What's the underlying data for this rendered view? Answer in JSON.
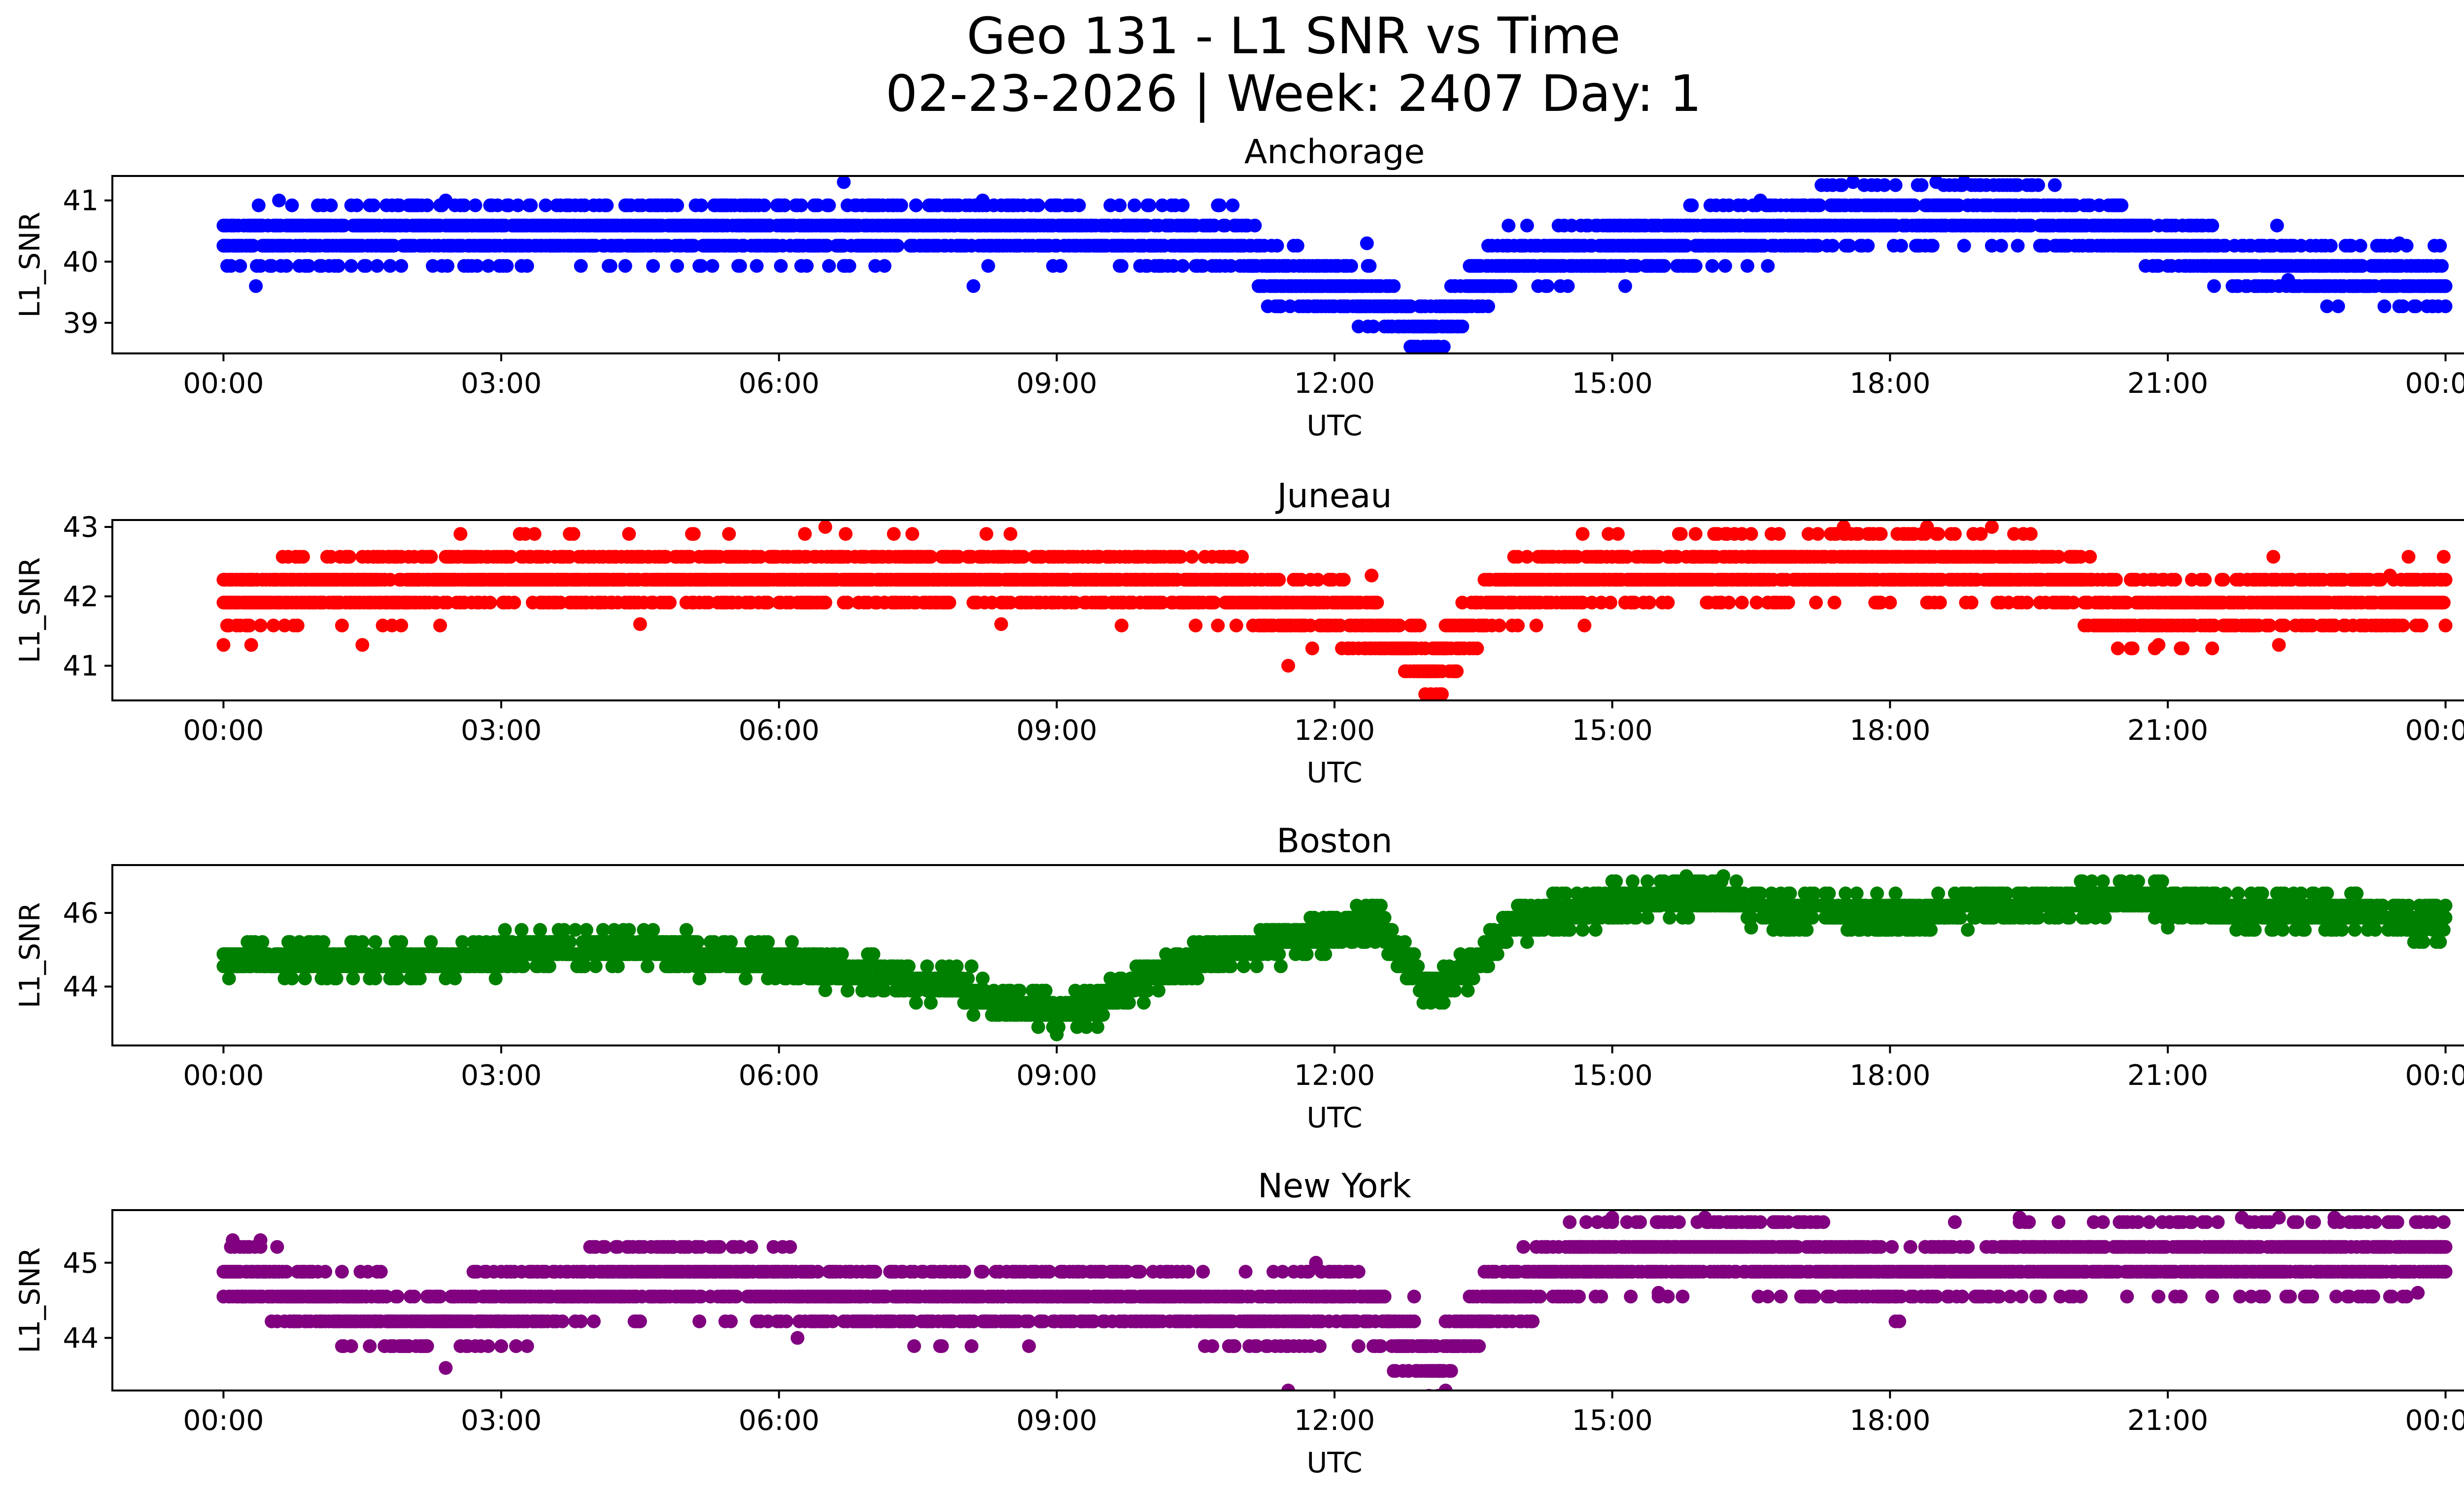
{
  "chart_data": {
    "type": "scatter",
    "title_lines": [
      "Geo 131 - L1 SNR vs Time",
      "02-23-2026 | Week: 2407 Day: 1"
    ],
    "x_tick_labels": [
      "00:00",
      "03:00",
      "06:00",
      "09:00",
      "12:00",
      "15:00",
      "18:00",
      "21:00",
      "00:00"
    ],
    "x_range_hours": [
      -1.2,
      25.2
    ],
    "panels": [
      {
        "title": "Anchorage",
        "xlabel": "UTC",
        "ylabel": "L1_SNR",
        "color": "#0000ff",
        "ylim": [
          38.5,
          41.4
        ],
        "yticks": [
          39,
          40,
          41
        ],
        "ytick_labels": [
          "39",
          "40",
          "41"
        ],
        "quantum": 0.33,
        "profile": [
          [
            0.0,
            40.3
          ],
          [
            1.0,
            40.4
          ],
          [
            3.0,
            40.5
          ],
          [
            6.0,
            40.5
          ],
          [
            9.0,
            40.5
          ],
          [
            11.0,
            40.3
          ],
          [
            11.3,
            39.7
          ],
          [
            12.0,
            39.6
          ],
          [
            12.6,
            39.3
          ],
          [
            13.1,
            38.8
          ],
          [
            13.5,
            39.6
          ],
          [
            14.0,
            40.1
          ],
          [
            15.0,
            40.2
          ],
          [
            16.5,
            40.5
          ],
          [
            18.0,
            40.8
          ],
          [
            19.5,
            40.8
          ],
          [
            21.0,
            40.3
          ],
          [
            22.0,
            40.0
          ],
          [
            23.0,
            39.8
          ],
          [
            24.0,
            39.7
          ]
        ],
        "outliers": [
          [
            0.35,
            39.6
          ],
          [
            0.6,
            41.0
          ],
          [
            2.4,
            41.0
          ],
          [
            6.7,
            41.3
          ],
          [
            8.2,
            41.0
          ],
          [
            8.1,
            39.6
          ],
          [
            12.35,
            40.3
          ],
          [
            17.6,
            41.3
          ],
          [
            18.5,
            41.3
          ],
          [
            18.8,
            41.3
          ],
          [
            16.6,
            41.0
          ],
          [
            22.3,
            39.7
          ],
          [
            23.5,
            40.3
          ],
          [
            21.7,
            39.6
          ]
        ]
      },
      {
        "title": "Juneau",
        "xlabel": "UTC",
        "ylabel": "L1_SNR",
        "color": "#ff0000",
        "ylim": [
          40.5,
          43.1
        ],
        "yticks": [
          41,
          42,
          43
        ],
        "ytick_labels": [
          "41",
          "42",
          "43"
        ],
        "quantum": 0.33,
        "profile": [
          [
            0.0,
            41.9
          ],
          [
            1.0,
            42.1
          ],
          [
            3.0,
            42.3
          ],
          [
            6.0,
            42.3
          ],
          [
            9.0,
            42.3
          ],
          [
            11.0,
            42.1
          ],
          [
            11.4,
            41.8
          ],
          [
            12.0,
            41.8
          ],
          [
            12.6,
            41.4
          ],
          [
            13.1,
            41.0
          ],
          [
            13.6,
            41.8
          ],
          [
            14.0,
            42.2
          ],
          [
            15.0,
            42.3
          ],
          [
            17.0,
            42.4
          ],
          [
            18.5,
            42.5
          ],
          [
            20.0,
            42.3
          ],
          [
            20.3,
            41.8
          ],
          [
            21.0,
            41.8
          ],
          [
            22.0,
            41.9
          ],
          [
            24.0,
            42.0
          ]
        ],
        "outliers": [
          [
            0.0,
            41.3
          ],
          [
            0.3,
            41.3
          ],
          [
            1.5,
            41.3
          ],
          [
            4.5,
            41.6
          ],
          [
            6.5,
            43.0
          ],
          [
            8.4,
            41.6
          ],
          [
            11.5,
            41.0
          ],
          [
            17.5,
            43.0
          ],
          [
            18.4,
            43.0
          ],
          [
            19.1,
            43.0
          ],
          [
            12.4,
            42.3
          ],
          [
            20.9,
            41.3
          ],
          [
            22.2,
            41.3
          ],
          [
            23.4,
            42.3
          ]
        ]
      },
      {
        "title": "Boston",
        "xlabel": "UTC",
        "ylabel": "L1_SNR",
        "color": "#008000",
        "ylim": [
          42.4,
          47.3
        ],
        "yticks": [
          44,
          46
        ],
        "ytick_labels": [
          "44",
          "46"
        ],
        "quantum": 0.33,
        "profile": [
          [
            0.0,
            44.8
          ],
          [
            1.0,
            44.7
          ],
          [
            2.5,
            44.7
          ],
          [
            3.5,
            45.0
          ],
          [
            4.5,
            45.1
          ],
          [
            5.5,
            44.8
          ],
          [
            6.5,
            44.5
          ],
          [
            7.5,
            44.2
          ],
          [
            8.5,
            43.6
          ],
          [
            9.0,
            43.3
          ],
          [
            9.5,
            43.6
          ],
          [
            10.2,
            44.5
          ],
          [
            11.0,
            45.0
          ],
          [
            11.7,
            45.3
          ],
          [
            12.2,
            45.6
          ],
          [
            12.5,
            45.8
          ],
          [
            12.7,
            44.9
          ],
          [
            13.1,
            43.8
          ],
          [
            13.5,
            44.6
          ],
          [
            14.0,
            45.8
          ],
          [
            14.5,
            46.0
          ],
          [
            15.0,
            46.3
          ],
          [
            16.0,
            46.5
          ],
          [
            16.8,
            46.1
          ],
          [
            18.0,
            45.9
          ],
          [
            19.0,
            46.2
          ],
          [
            20.5,
            46.4
          ],
          [
            21.5,
            46.1
          ],
          [
            23.0,
            46.0
          ],
          [
            24.0,
            45.8
          ]
        ],
        "outliers": [
          [
            9.0,
            42.7
          ],
          [
            15.8,
            47.0
          ],
          [
            16.2,
            47.0
          ],
          [
            6.5,
            43.9
          ],
          [
            12.4,
            46.0
          ],
          [
            16.5,
            45.6
          ],
          [
            21.0,
            45.6
          ],
          [
            23.7,
            45.3
          ]
        ]
      },
      {
        "title": "New York",
        "xlabel": "UTC",
        "ylabel": "L1_SNR",
        "color": "#800080",
        "ylim": [
          43.3,
          45.7
        ],
        "yticks": [
          44,
          45
        ],
        "ytick_labels": [
          "44",
          "45"
        ],
        "quantum": 0.33,
        "profile": [
          [
            0.0,
            44.9
          ],
          [
            1.0,
            44.5
          ],
          [
            2.0,
            44.2
          ],
          [
            3.0,
            44.4
          ],
          [
            4.0,
            44.7
          ],
          [
            5.0,
            44.9
          ],
          [
            6.0,
            44.7
          ],
          [
            7.0,
            44.5
          ],
          [
            9.0,
            44.5
          ],
          [
            10.0,
            44.6
          ],
          [
            11.0,
            44.3
          ],
          [
            11.6,
            44.3
          ],
          [
            12.0,
            44.6
          ],
          [
            12.5,
            44.3
          ],
          [
            13.1,
            43.6
          ],
          [
            13.6,
            44.4
          ],
          [
            14.0,
            44.6
          ],
          [
            14.5,
            45.0
          ],
          [
            15.0,
            45.1
          ],
          [
            16.5,
            45.2
          ],
          [
            18.0,
            44.8
          ],
          [
            19.0,
            45.0
          ],
          [
            21.0,
            45.1
          ],
          [
            22.0,
            45.0
          ],
          [
            24.0,
            45.1
          ]
        ],
        "outliers": [
          [
            0.1,
            45.3
          ],
          [
            0.4,
            45.3
          ],
          [
            2.4,
            43.6
          ],
          [
            11.5,
            43.3
          ],
          [
            13.2,
            43.3
          ],
          [
            11.8,
            45.0
          ],
          [
            15.0,
            45.6
          ],
          [
            16.0,
            45.6
          ],
          [
            19.4,
            45.6
          ],
          [
            21.8,
            45.6
          ],
          [
            22.2,
            45.6
          ],
          [
            22.8,
            45.6
          ],
          [
            23.7,
            44.6
          ],
          [
            15.5,
            44.6
          ],
          [
            6.2,
            44.0
          ]
        ]
      }
    ]
  }
}
